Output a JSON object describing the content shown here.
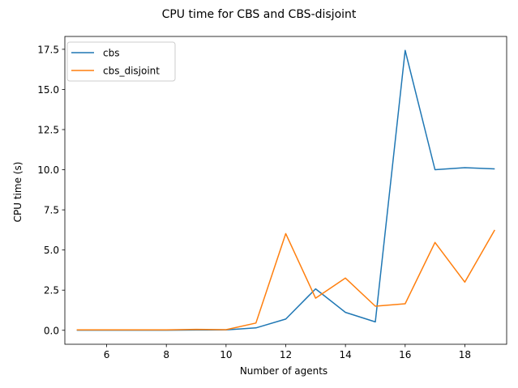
{
  "chart_data": {
    "type": "line",
    "title": "CPU time for CBS and CBS-disjoint",
    "xlabel": "Number of agents",
    "ylabel": "CPU time (s)",
    "x": [
      5,
      6,
      7,
      8,
      9,
      10,
      11,
      12,
      13,
      14,
      15,
      16,
      17,
      18,
      19
    ],
    "xlim": [
      4.6,
      19.4
    ],
    "ylim": [
      -0.87,
      18.3
    ],
    "xticks": [
      6,
      8,
      10,
      12,
      14,
      16,
      18
    ],
    "xtick_labels": [
      "6",
      "8",
      "10",
      "12",
      "14",
      "16",
      "18"
    ],
    "yticks": [
      0.0,
      2.5,
      5.0,
      7.5,
      10.0,
      12.5,
      15.0,
      17.5
    ],
    "ytick_labels": [
      "0.0",
      "2.5",
      "5.0",
      "7.5",
      "10.0",
      "12.5",
      "15.0",
      "17.5"
    ],
    "grid": false,
    "legend_position": "top-left",
    "series": [
      {
        "name": "cbs",
        "color": "#1f77b4",
        "values": [
          0.01,
          0.01,
          0.01,
          0.01,
          0.02,
          0.03,
          0.15,
          0.7,
          2.58,
          1.12,
          0.52,
          17.43,
          10.0,
          10.13,
          10.05
        ]
      },
      {
        "name": "cbs_disjoint",
        "color": "#ff7f0e",
        "values": [
          0.03,
          0.03,
          0.03,
          0.03,
          0.06,
          0.04,
          0.45,
          6.02,
          2.0,
          3.25,
          1.5,
          1.65,
          5.47,
          3.0,
          6.25
        ]
      }
    ]
  }
}
